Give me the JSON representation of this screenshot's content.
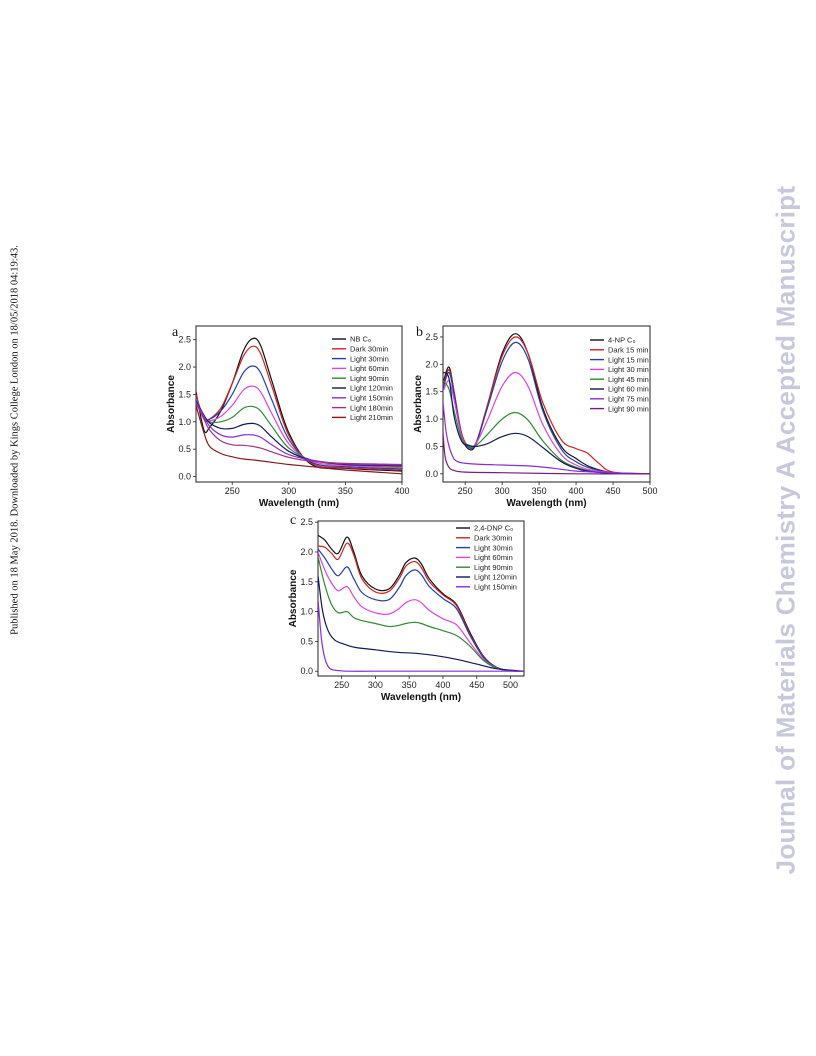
{
  "side_note": "Published on 18 May 2018. Downloaded by Kings College London on 18/05/2018 04:19:43.",
  "watermark": "Journal of Materials Chemistry A Accepted Manuscript",
  "chart_data": [
    {
      "type": "line",
      "panel_label": "a",
      "xlabel": "Wavelength (nm)",
      "ylabel": "Absorbance",
      "xlim": [
        218,
        400
      ],
      "ylim": [
        -0.1,
        2.75
      ],
      "xticks": [
        250,
        300,
        350,
        400
      ],
      "yticks": [
        0.0,
        0.5,
        1.0,
        1.5,
        2.0,
        2.5
      ],
      "ytick_labels": [
        "0.0",
        "0.5",
        "1.0",
        "1.5",
        "2.0",
        "2.5"
      ],
      "legend_position": "top-right",
      "grid": false,
      "series": [
        {
          "name": "NB C₀",
          "color": "#111111",
          "x": [
            218,
            225,
            230,
            240,
            250,
            260,
            268,
            275,
            285,
            300,
            320,
            350,
            400
          ],
          "y": [
            1.55,
            0.85,
            0.9,
            1.2,
            1.7,
            2.3,
            2.52,
            2.4,
            1.75,
            0.8,
            0.22,
            0.15,
            0.1
          ]
        },
        {
          "name": "Dark 30min",
          "color": "#d32020",
          "x": [
            218,
            225,
            230,
            240,
            250,
            260,
            268,
            275,
            285,
            300,
            320,
            350,
            400
          ],
          "y": [
            1.5,
            1.05,
            1.05,
            1.25,
            1.7,
            2.2,
            2.38,
            2.25,
            1.65,
            0.75,
            0.24,
            0.16,
            0.12
          ]
        },
        {
          "name": "Light 30min",
          "color": "#1f3fb0",
          "x": [
            218,
            225,
            230,
            240,
            250,
            260,
            268,
            275,
            285,
            300,
            320,
            350,
            400
          ],
          "y": [
            1.45,
            1.08,
            1.05,
            1.2,
            1.5,
            1.9,
            2.02,
            1.9,
            1.4,
            0.68,
            0.26,
            0.18,
            0.14
          ]
        },
        {
          "name": "Light 60min",
          "color": "#e040e0",
          "x": [
            218,
            225,
            230,
            240,
            250,
            260,
            268,
            275,
            285,
            300,
            320,
            350,
            400
          ],
          "y": [
            1.42,
            1.1,
            1.02,
            1.1,
            1.3,
            1.58,
            1.65,
            1.55,
            1.15,
            0.6,
            0.28,
            0.2,
            0.16
          ]
        },
        {
          "name": "Light 90min",
          "color": "#2e8b2e",
          "x": [
            218,
            225,
            230,
            240,
            250,
            260,
            268,
            275,
            285,
            300,
            320,
            350,
            400
          ],
          "y": [
            1.4,
            1.12,
            1.0,
            1.0,
            1.08,
            1.25,
            1.28,
            1.2,
            0.92,
            0.52,
            0.3,
            0.22,
            0.18
          ]
        },
        {
          "name": "Light 120min",
          "color": "#101860",
          "x": [
            218,
            225,
            230,
            240,
            250,
            260,
            268,
            275,
            285,
            300,
            320,
            350,
            400
          ],
          "y": [
            1.38,
            1.12,
            0.98,
            0.88,
            0.88,
            0.95,
            0.97,
            0.92,
            0.72,
            0.46,
            0.3,
            0.22,
            0.2
          ]
        },
        {
          "name": "Light 150min",
          "color": "#8a2be2",
          "x": [
            218,
            225,
            230,
            240,
            250,
            260,
            268,
            275,
            285,
            300,
            320,
            350,
            400
          ],
          "y": [
            1.36,
            1.1,
            0.92,
            0.76,
            0.72,
            0.76,
            0.76,
            0.72,
            0.58,
            0.4,
            0.3,
            0.23,
            0.21
          ]
        },
        {
          "name": "Light 180min",
          "color": "#a0308a",
          "x": [
            218,
            225,
            230,
            240,
            250,
            260,
            268,
            275,
            285,
            300,
            320,
            350,
            400
          ],
          "y": [
            1.34,
            1.05,
            0.85,
            0.65,
            0.58,
            0.57,
            0.55,
            0.52,
            0.45,
            0.35,
            0.28,
            0.24,
            0.22
          ]
        },
        {
          "name": "Light 210min",
          "color": "#8b1a1a",
          "x": [
            218,
            225,
            230,
            240,
            250,
            260,
            270,
            285,
            300,
            320,
            350,
            400
          ],
          "y": [
            1.3,
            0.8,
            0.55,
            0.42,
            0.36,
            0.32,
            0.3,
            0.26,
            0.22,
            0.18,
            0.12,
            0.05
          ]
        }
      ]
    },
    {
      "type": "line",
      "panel_label": "b",
      "xlabel": "Wavelength (nm)",
      "ylabel": "Absorbance",
      "xlim": [
        220,
        500
      ],
      "ylim": [
        -0.15,
        2.7
      ],
      "xticks": [
        250,
        300,
        350,
        400,
        450,
        500
      ],
      "yticks": [
        0.0,
        0.5,
        1.0,
        1.5,
        2.0,
        2.5
      ],
      "ytick_labels": [
        "0.0",
        "0.5",
        "1.0",
        "1.5",
        "2.0",
        "2.5"
      ],
      "legend_position": "top-right",
      "grid": false,
      "series": [
        {
          "name": "4-NP C₀",
          "color": "#111111",
          "x": [
            220,
            228,
            235,
            245,
            255,
            265,
            280,
            300,
            318,
            335,
            355,
            380,
            400,
            420,
            450,
            500
          ],
          "y": [
            1.65,
            1.95,
            1.5,
            0.7,
            0.45,
            0.55,
            1.25,
            2.2,
            2.56,
            2.2,
            1.2,
            0.5,
            0.28,
            0.12,
            0.02,
            0.0
          ]
        },
        {
          "name": "Dark 15 min",
          "color": "#d32020",
          "x": [
            220,
            228,
            235,
            245,
            255,
            265,
            280,
            300,
            318,
            335,
            355,
            380,
            400,
            415,
            430,
            450,
            500
          ],
          "y": [
            1.6,
            1.9,
            1.5,
            0.75,
            0.5,
            0.58,
            1.25,
            2.15,
            2.5,
            2.2,
            1.3,
            0.62,
            0.46,
            0.38,
            0.2,
            0.03,
            0.0
          ]
        },
        {
          "name": "Light 15 min",
          "color": "#1f3fb0",
          "x": [
            220,
            228,
            235,
            245,
            255,
            265,
            280,
            300,
            318,
            335,
            355,
            380,
            400,
            420,
            450,
            500
          ],
          "y": [
            1.55,
            1.85,
            1.45,
            0.72,
            0.48,
            0.56,
            1.2,
            2.05,
            2.4,
            2.1,
            1.15,
            0.45,
            0.22,
            0.1,
            0.02,
            0.0
          ]
        },
        {
          "name": "Light 30 min",
          "color": "#e040e0",
          "x": [
            220,
            228,
            235,
            245,
            255,
            265,
            280,
            300,
            318,
            335,
            355,
            380,
            400,
            420,
            450,
            500
          ],
          "y": [
            1.5,
            1.7,
            1.35,
            0.7,
            0.5,
            0.56,
            0.98,
            1.6,
            1.85,
            1.6,
            0.9,
            0.35,
            0.16,
            0.07,
            0.02,
            0.0
          ]
        },
        {
          "name": "Light 45 min",
          "color": "#2e8b2e",
          "x": [
            220,
            228,
            235,
            245,
            255,
            265,
            280,
            300,
            318,
            335,
            355,
            380,
            400,
            420,
            450,
            500
          ],
          "y": [
            1.7,
            1.55,
            1.15,
            0.65,
            0.5,
            0.52,
            0.72,
            1.0,
            1.12,
            0.98,
            0.6,
            0.25,
            0.12,
            0.05,
            0.01,
            0.0
          ]
        },
        {
          "name": "Light 60 min",
          "color": "#101860",
          "x": [
            220,
            228,
            235,
            245,
            255,
            265,
            280,
            300,
            318,
            335,
            355,
            380,
            400,
            420,
            450,
            500
          ],
          "y": [
            1.85,
            1.75,
            1.05,
            0.6,
            0.52,
            0.5,
            0.55,
            0.68,
            0.74,
            0.68,
            0.48,
            0.22,
            0.1,
            0.04,
            0.01,
            0.0
          ]
        },
        {
          "name": "Light 75 min",
          "color": "#8a2be2",
          "x": [
            220,
            225,
            232,
            240,
            260,
            300,
            340,
            370,
            400,
            450,
            500
          ],
          "y": [
            1.3,
            0.7,
            0.35,
            0.22,
            0.18,
            0.16,
            0.14,
            0.1,
            0.05,
            0.02,
            0.0
          ]
        },
        {
          "name": "Light 90 min",
          "color": "#7a1b8a",
          "x": [
            220,
            223,
            228,
            235,
            250,
            300,
            400,
            500
          ],
          "y": [
            0.75,
            0.3,
            0.12,
            0.06,
            0.03,
            0.02,
            0.0,
            0.0
          ]
        }
      ]
    },
    {
      "type": "line",
      "panel_label": "c",
      "xlabel": "Wavelength (nm)",
      "ylabel": "Absorbance",
      "xlim": [
        215,
        520
      ],
      "ylim": [
        -0.08,
        2.52
      ],
      "xticks": [
        250,
        300,
        350,
        400,
        450,
        500
      ],
      "yticks": [
        0.0,
        0.5,
        1.0,
        1.5,
        2.0,
        2.5
      ],
      "ytick_labels": [
        "0.0",
        "0.5",
        "1.0",
        "1.5",
        "2.0",
        "2.5"
      ],
      "legend_position": "top-right",
      "grid": false,
      "series": [
        {
          "name": "2,4-DNP C₀",
          "color": "#111111",
          "x": [
            215,
            225,
            235,
            245,
            258,
            268,
            280,
            300,
            320,
            335,
            345,
            358,
            368,
            380,
            400,
            420,
            440,
            460,
            480,
            500,
            520
          ],
          "y": [
            2.28,
            2.2,
            2.05,
            1.98,
            2.25,
            2.0,
            1.6,
            1.38,
            1.38,
            1.6,
            1.82,
            1.9,
            1.8,
            1.55,
            1.3,
            1.12,
            0.65,
            0.25,
            0.06,
            0.01,
            0.0
          ]
        },
        {
          "name": "Dark 30min",
          "color": "#d32020",
          "x": [
            215,
            225,
            235,
            245,
            258,
            268,
            280,
            300,
            320,
            335,
            345,
            358,
            368,
            380,
            400,
            420,
            440,
            460,
            480,
            500,
            520
          ],
          "y": [
            2.1,
            2.08,
            1.98,
            1.88,
            2.15,
            1.95,
            1.55,
            1.33,
            1.34,
            1.55,
            1.76,
            1.84,
            1.74,
            1.5,
            1.28,
            1.1,
            0.62,
            0.24,
            0.06,
            0.01,
            0.0
          ]
        },
        {
          "name": "Light 30min",
          "color": "#1f3fb0",
          "x": [
            215,
            225,
            235,
            245,
            258,
            268,
            280,
            300,
            320,
            335,
            345,
            358,
            368,
            380,
            400,
            420,
            440,
            460,
            480,
            500,
            520
          ],
          "y": [
            2.05,
            1.9,
            1.72,
            1.6,
            1.75,
            1.55,
            1.32,
            1.2,
            1.2,
            1.4,
            1.6,
            1.7,
            1.62,
            1.42,
            1.22,
            1.05,
            0.6,
            0.23,
            0.06,
            0.01,
            0.0
          ]
        },
        {
          "name": "Light 60min",
          "color": "#e040e0",
          "x": [
            215,
            225,
            235,
            245,
            258,
            268,
            280,
            300,
            320,
            335,
            345,
            358,
            368,
            380,
            400,
            420,
            440,
            460,
            480,
            500,
            520
          ],
          "y": [
            2.0,
            1.7,
            1.48,
            1.35,
            1.42,
            1.25,
            1.08,
            0.98,
            0.96,
            1.05,
            1.15,
            1.2,
            1.15,
            1.02,
            0.88,
            0.78,
            0.48,
            0.2,
            0.05,
            0.01,
            0.0
          ]
        },
        {
          "name": "Light 90min",
          "color": "#2e8b2e",
          "x": [
            215,
            225,
            235,
            245,
            258,
            268,
            280,
            300,
            320,
            335,
            345,
            358,
            368,
            380,
            400,
            420,
            440,
            460,
            480,
            500,
            520
          ],
          "y": [
            1.92,
            1.45,
            1.12,
            0.98,
            1.0,
            0.9,
            0.85,
            0.8,
            0.75,
            0.77,
            0.8,
            0.82,
            0.8,
            0.75,
            0.68,
            0.6,
            0.42,
            0.18,
            0.05,
            0.01,
            0.0
          ]
        },
        {
          "name": "Light 120min",
          "color": "#101860",
          "x": [
            215,
            222,
            230,
            240,
            255,
            270,
            300,
            330,
            360,
            390,
            420,
            450,
            480,
            520
          ],
          "y": [
            1.6,
            1.0,
            0.68,
            0.52,
            0.45,
            0.4,
            0.36,
            0.32,
            0.3,
            0.26,
            0.2,
            0.12,
            0.04,
            0.0
          ]
        },
        {
          "name": "Light 150min",
          "color": "#8a2be2",
          "x": [
            215,
            220,
            225,
            230,
            235,
            245,
            260,
            300,
            400,
            520
          ],
          "y": [
            1.2,
            0.55,
            0.22,
            0.08,
            0.03,
            0.01,
            0.0,
            0.0,
            0.0,
            0.0
          ]
        }
      ]
    }
  ]
}
